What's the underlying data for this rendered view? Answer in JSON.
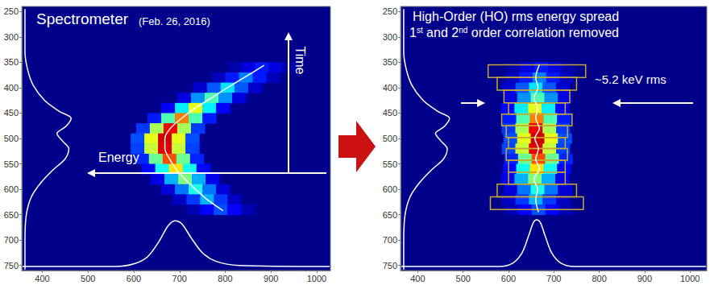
{
  "chart_data": [
    {
      "type": "heatmap",
      "title": "Spectrometer",
      "subtitle": "(Feb. 26, 2016)",
      "annotations": [
        "Time",
        "Energy"
      ],
      "xlim": [
        355,
        1030
      ],
      "ylim": [
        240,
        760
      ],
      "xticks": [
        400,
        500,
        600,
        700,
        800,
        900,
        1000
      ],
      "yticks": [
        250,
        300,
        350,
        400,
        450,
        500,
        550,
        600,
        650,
        700,
        750
      ],
      "color_range": [
        0,
        100
      ],
      "cells": [
        [
          820,
          360,
          3
        ],
        [
          850,
          360,
          9
        ],
        [
          880,
          360,
          15
        ],
        [
          910,
          360,
          9
        ],
        [
          940,
          360,
          3
        ],
        [
          785,
          380,
          5
        ],
        [
          815,
          380,
          15
        ],
        [
          845,
          380,
          25
        ],
        [
          875,
          380,
          15
        ],
        [
          905,
          380,
          5
        ],
        [
          745,
          400,
          7
        ],
        [
          775,
          400,
          21
        ],
        [
          805,
          400,
          35
        ],
        [
          835,
          400,
          21
        ],
        [
          865,
          400,
          7
        ],
        [
          710,
          420,
          9
        ],
        [
          740,
          420,
          27
        ],
        [
          770,
          420,
          45
        ],
        [
          800,
          420,
          27
        ],
        [
          830,
          420,
          9
        ],
        [
          675,
          440,
          12
        ],
        [
          705,
          440,
          36
        ],
        [
          735,
          440,
          60
        ],
        [
          765,
          440,
          36
        ],
        [
          795,
          440,
          12
        ],
        [
          645,
          460,
          15
        ],
        [
          675,
          460,
          45
        ],
        [
          705,
          460,
          75
        ],
        [
          735,
          460,
          45
        ],
        [
          765,
          460,
          15
        ],
        [
          620,
          480,
          18
        ],
        [
          650,
          480,
          54
        ],
        [
          680,
          480,
          90
        ],
        [
          710,
          480,
          54
        ],
        [
          740,
          480,
          18
        ],
        [
          608,
          500,
          20
        ],
        [
          638,
          500,
          60
        ],
        [
          668,
          500,
          100
        ],
        [
          698,
          500,
          60
        ],
        [
          728,
          500,
          20
        ],
        [
          608,
          520,
          19
        ],
        [
          638,
          520,
          57
        ],
        [
          668,
          520,
          95
        ],
        [
          698,
          520,
          57
        ],
        [
          728,
          520,
          19
        ],
        [
          618,
          540,
          16
        ],
        [
          648,
          540,
          48
        ],
        [
          678,
          540,
          80
        ],
        [
          708,
          540,
          48
        ],
        [
          738,
          540,
          16
        ],
        [
          632,
          560,
          13
        ],
        [
          662,
          560,
          39
        ],
        [
          692,
          560,
          65
        ],
        [
          722,
          560,
          39
        ],
        [
          752,
          560,
          13
        ],
        [
          652,
          580,
          10
        ],
        [
          682,
          580,
          30
        ],
        [
          712,
          580,
          50
        ],
        [
          742,
          580,
          30
        ],
        [
          772,
          580,
          10
        ],
        [
          675,
          600,
          8
        ],
        [
          705,
          600,
          24
        ],
        [
          735,
          600,
          40
        ],
        [
          765,
          600,
          24
        ],
        [
          795,
          600,
          8
        ],
        [
          700,
          620,
          6
        ],
        [
          730,
          620,
          18
        ],
        [
          760,
          620,
          30
        ],
        [
          790,
          620,
          18
        ],
        [
          820,
          620,
          6
        ],
        [
          730,
          640,
          4
        ],
        [
          760,
          640,
          12
        ],
        [
          790,
          640,
          20
        ],
        [
          820,
          640,
          12
        ],
        [
          850,
          640,
          4
        ]
      ],
      "series": [
        {
          "type": "line",
          "color": "#ffffff",
          "values": [
            [
              885,
              356
            ],
            [
              845,
              378
            ],
            [
              805,
              400
            ],
            [
              770,
              420
            ],
            [
              735,
              440
            ],
            [
              705,
              460
            ],
            [
              680,
              480
            ],
            [
              668,
              500
            ],
            [
              668,
              520
            ],
            [
              678,
              540
            ],
            [
              692,
              560
            ],
            [
              712,
              580
            ],
            [
              735,
              600
            ],
            [
              760,
              620
            ],
            [
              795,
              642
            ]
          ]
        },
        {
          "type": "line",
          "color": "#ffffff",
          "values": [
            [
              362,
              245
            ],
            [
              362,
              330
            ],
            [
              368,
              365
            ],
            [
              380,
              395
            ],
            [
              405,
              425
            ],
            [
              438,
              447
            ],
            [
              463,
              460
            ],
            [
              452,
              476
            ],
            [
              432,
              490
            ],
            [
              444,
              505
            ],
            [
              458,
              520
            ],
            [
              450,
              540
            ],
            [
              422,
              563
            ],
            [
              396,
              588
            ],
            [
              376,
              615
            ],
            [
              365,
              650
            ],
            [
              362,
              700
            ],
            [
              362,
              758
            ]
          ]
        },
        {
          "type": "line",
          "color": "#ffffff",
          "values": [
            [
              357,
              752
            ],
            [
              560,
              752
            ],
            [
              600,
              747
            ],
            [
              630,
              733
            ],
            [
              655,
              703
            ],
            [
              675,
              672
            ],
            [
              690,
              662
            ],
            [
              705,
              668
            ],
            [
              725,
              695
            ],
            [
              750,
              725
            ],
            [
              780,
              742
            ],
            [
              830,
              750
            ],
            [
              1028,
              752
            ]
          ]
        }
      ]
    },
    {
      "type": "heatmap",
      "title": "High-Order (HO) rms energy spread",
      "subtitle": "1st and 2nd order correlation removed",
      "annotations": [
        "~5.2 keV rms"
      ],
      "xlim": [
        362,
        1037
      ],
      "ylim": [
        240,
        760
      ],
      "xticks": [
        400,
        500,
        600,
        700,
        800,
        900,
        1000
      ],
      "yticks": [
        250,
        300,
        350,
        400,
        450,
        500,
        550,
        600,
        650,
        700,
        750
      ],
      "color_range": [
        0,
        100
      ],
      "cells": [
        [
          612,
          360,
          3
        ],
        [
          642,
          360,
          9
        ],
        [
          672,
          360,
          15
        ],
        [
          702,
          360,
          9
        ],
        [
          732,
          360,
          3
        ],
        [
          608,
          380,
          5
        ],
        [
          638,
          380,
          15
        ],
        [
          668,
          380,
          25
        ],
        [
          698,
          380,
          15
        ],
        [
          728,
          380,
          5
        ],
        [
          600,
          400,
          7
        ],
        [
          630,
          400,
          21
        ],
        [
          660,
          400,
          35
        ],
        [
          690,
          400,
          21
        ],
        [
          720,
          400,
          7
        ],
        [
          604,
          420,
          9
        ],
        [
          634,
          420,
          27
        ],
        [
          664,
          420,
          45
        ],
        [
          694,
          420,
          27
        ],
        [
          724,
          420,
          9
        ],
        [
          598,
          440,
          12
        ],
        [
          628,
          440,
          36
        ],
        [
          658,
          440,
          60
        ],
        [
          688,
          440,
          36
        ],
        [
          718,
          440,
          12
        ],
        [
          602,
          460,
          15
        ],
        [
          632,
          460,
          45
        ],
        [
          662,
          460,
          75
        ],
        [
          692,
          460,
          45
        ],
        [
          722,
          460,
          15
        ],
        [
          600,
          480,
          18
        ],
        [
          630,
          480,
          54
        ],
        [
          660,
          480,
          90
        ],
        [
          690,
          480,
          54
        ],
        [
          720,
          480,
          18
        ],
        [
          604,
          500,
          20
        ],
        [
          634,
          500,
          60
        ],
        [
          664,
          500,
          100
        ],
        [
          694,
          500,
          60
        ],
        [
          724,
          500,
          20
        ],
        [
          600,
          520,
          19
        ],
        [
          630,
          520,
          57
        ],
        [
          660,
          520,
          95
        ],
        [
          690,
          520,
          57
        ],
        [
          720,
          520,
          19
        ],
        [
          606,
          540,
          16
        ],
        [
          636,
          540,
          48
        ],
        [
          666,
          540,
          80
        ],
        [
          696,
          540,
          48
        ],
        [
          726,
          540,
          16
        ],
        [
          602,
          560,
          13
        ],
        [
          632,
          560,
          39
        ],
        [
          662,
          560,
          65
        ],
        [
          692,
          560,
          39
        ],
        [
          722,
          560,
          13
        ],
        [
          598,
          580,
          10
        ],
        [
          628,
          580,
          30
        ],
        [
          658,
          580,
          50
        ],
        [
          688,
          580,
          30
        ],
        [
          718,
          580,
          10
        ],
        [
          604,
          600,
          8
        ],
        [
          634,
          600,
          24
        ],
        [
          664,
          600,
          40
        ],
        [
          694,
          600,
          24
        ],
        [
          724,
          600,
          8
        ],
        [
          600,
          620,
          6
        ],
        [
          630,
          620,
          18
        ],
        [
          660,
          620,
          30
        ],
        [
          690,
          620,
          18
        ],
        [
          720,
          620,
          6
        ],
        [
          606,
          640,
          4
        ],
        [
          636,
          640,
          12
        ],
        [
          666,
          640,
          20
        ],
        [
          696,
          640,
          12
        ],
        [
          726,
          640,
          4
        ]
      ],
      "series": [
        {
          "type": "rect",
          "color": "#c8a832",
          "values": [
            [
              555,
              770,
              355,
              380
            ],
            [
              575,
              750,
              380,
              405
            ],
            [
              590,
              735,
              405,
              430
            ],
            [
              600,
              725,
              430,
              452
            ],
            [
              585,
              740,
              452,
              475
            ],
            [
              595,
              730,
              475,
              498
            ],
            [
              600,
              725,
              498,
              520
            ],
            [
              595,
              730,
              520,
              543
            ],
            [
              600,
              725,
              543,
              566
            ],
            [
              600,
              725,
              566,
              590
            ],
            [
              575,
              750,
              590,
              615
            ],
            [
              560,
              765,
              615,
              640
            ]
          ]
        },
        {
          "type": "line",
          "color": "#ffffff",
          "values": [
            [
              668,
              355
            ],
            [
              660,
              380
            ],
            [
              665,
              400
            ],
            [
              656,
              420
            ],
            [
              664,
              440
            ],
            [
              660,
              460
            ],
            [
              668,
              480
            ],
            [
              658,
              500
            ],
            [
              666,
              520
            ],
            [
              660,
              540
            ],
            [
              668,
              560
            ],
            [
              656,
              580
            ],
            [
              664,
              600
            ],
            [
              660,
              620
            ],
            [
              666,
              645
            ]
          ]
        },
        {
          "type": "line",
          "color": "#ffffff",
          "values": [
            [
              369,
              245
            ],
            [
              369,
              330
            ],
            [
              375,
              365
            ],
            [
              387,
              395
            ],
            [
              412,
              425
            ],
            [
              445,
              447
            ],
            [
              470,
              460
            ],
            [
              459,
              476
            ],
            [
              439,
              490
            ],
            [
              451,
              505
            ],
            [
              465,
              520
            ],
            [
              457,
              540
            ],
            [
              429,
              563
            ],
            [
              403,
              588
            ],
            [
              383,
              615
            ],
            [
              372,
              650
            ],
            [
              369,
              700
            ],
            [
              369,
              758
            ]
          ]
        },
        {
          "type": "line",
          "color": "#ffffff",
          "values": [
            [
              364,
              752
            ],
            [
              580,
              752
            ],
            [
              610,
              745
            ],
            [
              630,
              725
            ],
            [
              645,
              690
            ],
            [
              655,
              665
            ],
            [
              662,
              660
            ],
            [
              670,
              665
            ],
            [
              680,
              690
            ],
            [
              695,
              725
            ],
            [
              715,
              745
            ],
            [
              745,
              752
            ],
            [
              1035,
              752
            ]
          ]
        }
      ]
    }
  ]
}
